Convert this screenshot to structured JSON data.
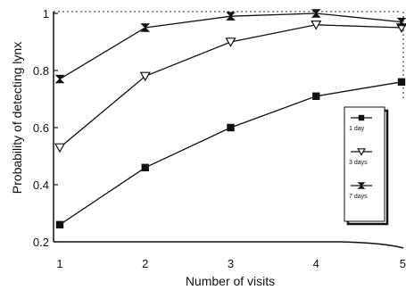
{
  "chart_data": {
    "type": "line",
    "title": "",
    "xlabel": "Number of visits",
    "ylabel": "Probability of detecting lynx",
    "x": [
      1,
      2,
      3,
      4,
      5
    ],
    "x_tick_labels": [
      "1",
      "2",
      "3",
      "4",
      "5"
    ],
    "y_tick_labels": [
      "0.2",
      "0.4",
      "0.6",
      "0.8",
      "1"
    ],
    "ylim": [
      0.2,
      1.0
    ],
    "grid": false,
    "legend_position": "right",
    "series": [
      {
        "name": "1 day",
        "marker": "square",
        "values": [
          0.26,
          0.46,
          0.6,
          0.71,
          0.76
        ]
      },
      {
        "name": "3 days",
        "marker": "open-triangle",
        "values": [
          0.53,
          0.78,
          0.9,
          0.96,
          0.95
        ]
      },
      {
        "name": "7 days",
        "marker": "bowtie",
        "values": [
          0.77,
          0.95,
          0.99,
          1.0,
          0.97
        ]
      }
    ],
    "colors": {
      "ink": "#111111",
      "background": "#ffffff"
    }
  }
}
